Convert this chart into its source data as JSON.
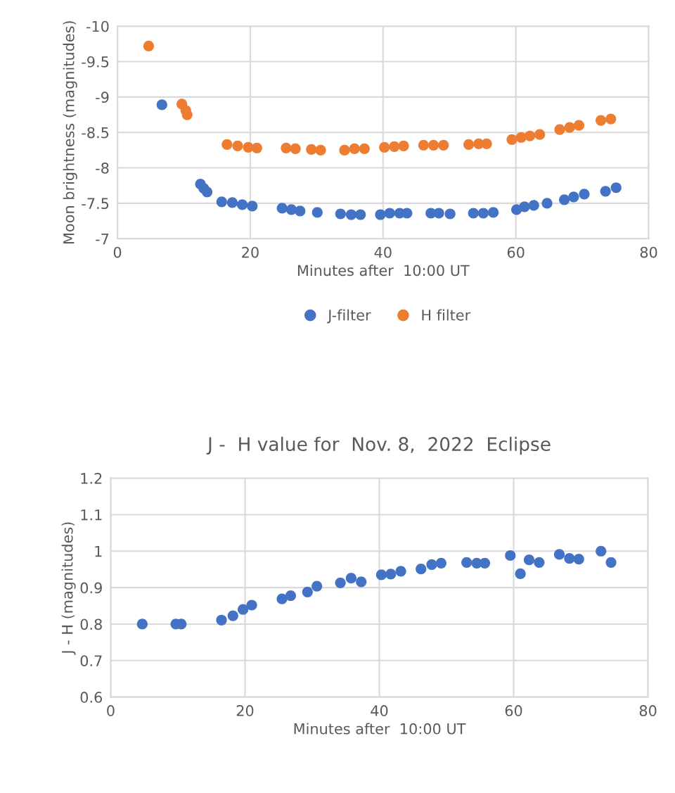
{
  "chart_data": [
    {
      "type": "scatter",
      "xlabel": "Minutes after  10:00 UT",
      "ylabel": "Moon brightness (magnitudes)",
      "xlim": [
        0,
        80
      ],
      "xticks": [
        0,
        20,
        40,
        60,
        80
      ],
      "ylim": [
        -7,
        -10
      ],
      "yticks": [
        -10,
        -9.5,
        -9,
        -8.5,
        -8,
        -7.5,
        -7
      ],
      "grid": true,
      "legend": "bottom",
      "marker": "circle",
      "series": [
        {
          "name": "J-filter",
          "color": "#4472c4",
          "x": [
            6.7,
            12.5,
            13.0,
            13.5,
            15.7,
            17.3,
            18.8,
            20.3,
            24.8,
            26.2,
            27.5,
            30.1,
            33.6,
            35.2,
            36.6,
            39.6,
            41.0,
            42.5,
            43.6,
            47.2,
            48.4,
            50.1,
            53.6,
            55.1,
            56.6,
            60.1,
            61.3,
            62.7,
            64.7,
            67.3,
            68.7,
            70.3,
            73.5,
            75.1
          ],
          "values": [
            -8.89,
            -7.77,
            -7.71,
            -7.66,
            -7.52,
            -7.51,
            -7.48,
            -7.46,
            -7.43,
            -7.41,
            -7.39,
            -7.37,
            -7.35,
            -7.34,
            -7.34,
            -7.34,
            -7.36,
            -7.36,
            -7.36,
            -7.36,
            -7.36,
            -7.35,
            -7.36,
            -7.36,
            -7.37,
            -7.41,
            -7.45,
            -7.47,
            -7.5,
            -7.55,
            -7.59,
            -7.63,
            -7.67,
            -7.72
          ]
        },
        {
          "name": "H filter",
          "color": "#ed7d31",
          "x": [
            4.7,
            9.7,
            10.3,
            10.5,
            16.5,
            18.1,
            19.7,
            21.0,
            25.4,
            26.8,
            29.2,
            30.6,
            34.2,
            35.7,
            37.2,
            40.2,
            41.7,
            43.1,
            46.1,
            47.6,
            49.1,
            52.9,
            54.4,
            55.6,
            59.4,
            60.8,
            62.1,
            63.6,
            66.6,
            68.1,
            69.5,
            72.8,
            74.3
          ],
          "values": [
            -9.72,
            -8.9,
            -8.81,
            -8.75,
            -8.33,
            -8.31,
            -8.29,
            -8.28,
            -8.28,
            -8.27,
            -8.26,
            -8.25,
            -8.25,
            -8.27,
            -8.27,
            -8.29,
            -8.3,
            -8.31,
            -8.32,
            -8.32,
            -8.32,
            -8.33,
            -8.34,
            -8.34,
            -8.4,
            -8.43,
            -8.45,
            -8.47,
            -8.54,
            -8.57,
            -8.6,
            -8.67,
            -8.69
          ]
        }
      ]
    },
    {
      "type": "scatter",
      "title": "J -  H value for  Nov. 8,  2022  Eclipse",
      "xlabel": "Minutes after  10:00 UT",
      "ylabel": "J - H (magnitudes)",
      "xlim": [
        0,
        80
      ],
      "xticks": [
        0,
        20,
        40,
        60,
        80
      ],
      "ylim": [
        0.6,
        1.2
      ],
      "yticks": [
        0.6,
        0.7,
        0.8,
        0.9,
        1,
        1.1,
        1.2
      ],
      "grid": true,
      "marker": "circle",
      "series": [
        {
          "color": "#4472c4",
          "x": [
            4.7,
            9.7,
            10.5,
            16.5,
            18.2,
            19.7,
            21.0,
            25.5,
            26.8,
            29.3,
            30.7,
            34.2,
            35.8,
            37.3,
            40.3,
            41.7,
            43.2,
            46.2,
            47.8,
            49.2,
            53.0,
            54.5,
            55.7,
            59.5,
            61.0,
            62.3,
            63.8,
            66.8,
            68.3,
            69.7,
            73.0,
            74.5
          ],
          "values": [
            0.8,
            0.8,
            0.8,
            0.811,
            0.823,
            0.84,
            0.852,
            0.869,
            0.878,
            0.888,
            0.904,
            0.913,
            0.926,
            0.916,
            0.935,
            0.937,
            0.945,
            0.951,
            0.963,
            0.967,
            0.969,
            0.967,
            0.967,
            0.988,
            0.938,
            0.976,
            0.969,
            0.991,
            0.98,
            0.978,
            1.0,
            0.969
          ]
        }
      ]
    }
  ]
}
